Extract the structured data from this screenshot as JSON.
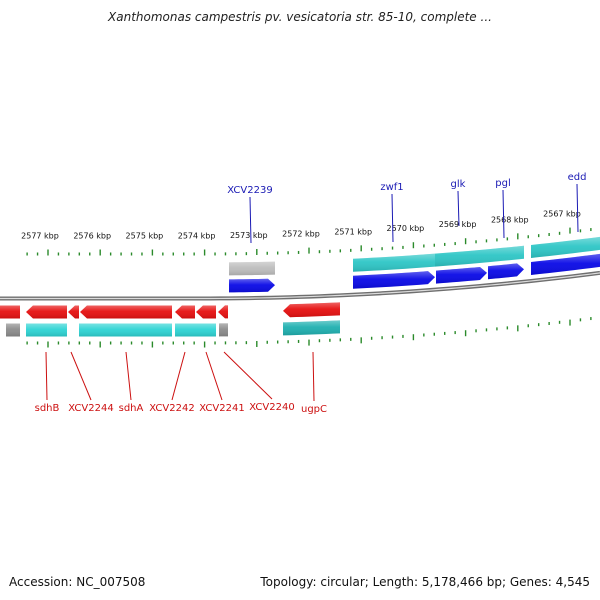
{
  "title": "Xanthomonas campestris pv. vesicatoria str. 85-10, complete ...",
  "footer": {
    "accession": "Accession: NC_007508",
    "topology": "Topology: circular; Length: 5,178,466 bp; Genes: 4,545"
  },
  "colors": {
    "forward_cds": "#0a0ae6",
    "forward_feature": "#2ec6c6",
    "reverse_cds": "#e61010",
    "reverse_feature": "#2ed4d4",
    "pseudo": "#8c8c8c",
    "backbone": "#8a8a8a",
    "tick": "#2a8a2a",
    "label_forward": "#1a1ab4",
    "label_reverse": "#cc1010"
  },
  "ruler": {
    "unit": "kbp",
    "ticks": [
      {
        "kbp": 2577,
        "label": "2577 kbp"
      },
      {
        "kbp": 2576,
        "label": "2576 kbp"
      },
      {
        "kbp": 2575,
        "label": "2575 kbp"
      },
      {
        "kbp": 2574,
        "label": "2574 kbp"
      },
      {
        "kbp": 2573,
        "label": "2573 kbp"
      },
      {
        "kbp": 2572,
        "label": "2572 kbp"
      },
      {
        "kbp": 2571,
        "label": "2571 kbp"
      },
      {
        "kbp": 2570,
        "label": "2570 kbp"
      },
      {
        "kbp": 2569,
        "label": "2569 kbp"
      },
      {
        "kbp": 2568,
        "label": "2568 kbp"
      },
      {
        "kbp": 2567,
        "label": "2567 kbp"
      }
    ]
  },
  "genes_forward": [
    {
      "name": "XCV2239"
    },
    {
      "name": "zwf1"
    },
    {
      "name": "glk"
    },
    {
      "name": "pgl"
    },
    {
      "name": "edd"
    }
  ],
  "genes_reverse": [
    {
      "name": "sdhB"
    },
    {
      "name": "XCV2244"
    },
    {
      "name": "sdhA"
    },
    {
      "name": "XCV2242"
    },
    {
      "name": "XCV2241"
    },
    {
      "name": "XCV2240"
    },
    {
      "name": "ugpC"
    }
  ]
}
